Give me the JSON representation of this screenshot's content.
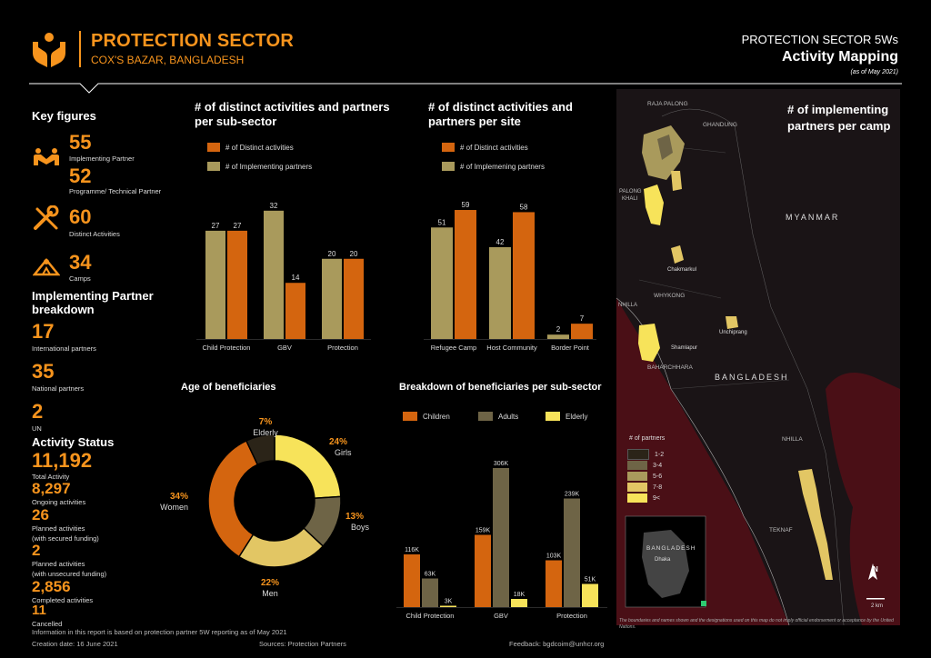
{
  "header": {
    "title": "PROTECTION SECTOR",
    "subtitle": "COX'S BAZAR, BANGLADESH",
    "right_line1": "PROTECTION SECTOR 5Ws",
    "right_line2": "Activity Mapping",
    "right_line3": "(as of May 2021)"
  },
  "key_figures": {
    "heading": "Key figures",
    "implementing_partner": {
      "value": "55",
      "label": "Implementing Partner"
    },
    "programme_partner": {
      "value": "52",
      "label": "Programme/ Technical Partner"
    },
    "distinct_activities": {
      "value": "60",
      "label": "Distinct Activities"
    },
    "camps": {
      "value": "34",
      "label": "Camps"
    },
    "ip_breakdown_heading_1": "Implementing Partner",
    "ip_breakdown_heading_2": "breakdown",
    "international": {
      "value": "17",
      "label": "International partners"
    },
    "national": {
      "value": "35",
      "label": "National partners"
    },
    "un": {
      "value": "2",
      "label": "UN"
    },
    "activity_status_heading": "Activity Status",
    "total": {
      "value": "11,192",
      "label": "Total Activity"
    },
    "ongoing": {
      "value": "8,297",
      "label": "Ongoing activities"
    },
    "planned_secured": {
      "value": "26",
      "label1": "Planned activities",
      "label2": "(with secured funding)"
    },
    "planned_unsecured": {
      "value": "2",
      "label1": "Planned activities",
      "label2": "(with unsecured funding)"
    },
    "completed": {
      "value": "2,856",
      "label": "Completed activities"
    },
    "cancelled": {
      "value": "11",
      "label": "Cancelled"
    }
  },
  "colors": {
    "orange": "#d4650f",
    "olive": "#a99a5c",
    "dark_olive": "#6e6446",
    "yellow": "#f7e35a",
    "accent": "#f7941d"
  },
  "chart_data": [
    {
      "type": "bar",
      "title_line1": "# of distinct activities and partners",
      "title_line2": "per sub-sector",
      "categories": [
        "Child Protection",
        "GBV",
        "Protection"
      ],
      "series": [
        {
          "name": "# of Distinct activities",
          "values": [
            27,
            14,
            20
          ]
        },
        {
          "name": "# of Implementing partners",
          "values": [
            27,
            32,
            20
          ]
        }
      ],
      "ylim": [
        0,
        34
      ]
    },
    {
      "type": "bar",
      "title_line1": "# of distinct activities and",
      "title_line2": "partners per site",
      "categories": [
        "Refugee Camp",
        "Host Community",
        "Border Point"
      ],
      "series": [
        {
          "name": "# of Distinct activities",
          "values": [
            59,
            58,
            7
          ]
        },
        {
          "name": "# of Implemening partners",
          "values": [
            51,
            42,
            2
          ]
        }
      ],
      "ylim": [
        0,
        64
      ]
    },
    {
      "type": "pie",
      "title": "Age of beneficiaries",
      "slices": [
        {
          "name": "Girls",
          "pct_label": "24%",
          "value": 24
        },
        {
          "name": "Boys",
          "pct_label": "13%",
          "value": 13
        },
        {
          "name": "Men",
          "pct_label": "22%",
          "value": 22
        },
        {
          "name": "Women",
          "pct_label": "34%",
          "value": 34
        },
        {
          "name": "Elderly",
          "pct_label": "7%",
          "value": 7
        }
      ]
    },
    {
      "type": "bar",
      "title": "Breakdown of beneficiaries per sub-sector",
      "categories": [
        "Child Protection",
        "GBV",
        "Protection"
      ],
      "series": [
        {
          "name": "Children",
          "values": [
            116,
            159,
            103
          ],
          "labels": [
            "116K",
            "159K",
            "103K"
          ]
        },
        {
          "name": "Adults",
          "values": [
            63,
            306,
            239
          ],
          "labels": [
            "63K",
            "306K",
            "239K"
          ]
        },
        {
          "name": "Elderly",
          "values": [
            3,
            18,
            51
          ],
          "labels": [
            "3K",
            "18K",
            "51K"
          ]
        }
      ],
      "ylim": [
        0,
        320
      ]
    }
  ],
  "map": {
    "title_line1": "# of implementing",
    "title_line2": "partners per camp",
    "labels": {
      "raja_palong": "RAJA PALONG",
      "ghandung": "GHANDUNG",
      "palong": "PALONG",
      "khali": "KHALI",
      "chakmarkul": "Chakmarkul",
      "myanmar": "MYANMAR",
      "whykong": "WHYKONG",
      "nhilla_top": "NHILLA",
      "shamlapur": "Shamlapur",
      "unchiprang": "Unchiprang",
      "baharchhara": "BAHARCHHARA",
      "bangladesh": "BANGLADESH",
      "nhilla": "NHILLA",
      "teknaf": "TEKNAF",
      "inset_country": "BANGLADESH",
      "inset_city": "Dhaka",
      "scale": "2 km",
      "north": "N"
    },
    "legend_title": "# of partners",
    "legend": [
      {
        "label": "1-2",
        "color": "#2b2418"
      },
      {
        "label": "3-4",
        "color": "#6e6446"
      },
      {
        "label": "5-6",
        "color": "#a99a5c"
      },
      {
        "label": "7-8",
        "color": "#e2c664"
      },
      {
        "label": "9<",
        "color": "#f7e35a"
      }
    ],
    "disclaimer": "The boundaries and names shown and the designations used on this map do not imply official endorsement or acceptance by the United Nations."
  },
  "footer": {
    "info": "Information in this report is based on protection partner 5W reporting as of May 2021",
    "creation": "Creation date: 16 June 2021",
    "sources": "Sources: Protection Partners",
    "feedback": "Feedback: bgdcoim@unhcr.org"
  }
}
